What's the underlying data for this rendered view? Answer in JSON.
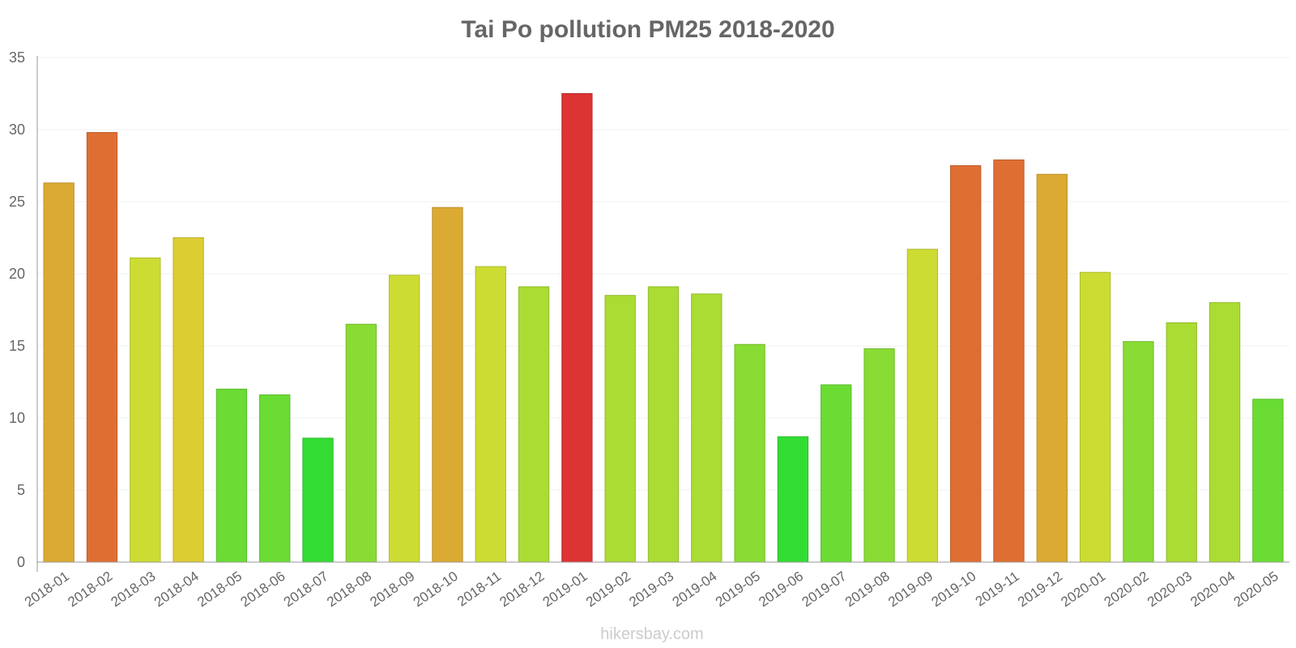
{
  "chart_data": {
    "type": "bar",
    "title": "Tai Po pollution PM25 2018-2020",
    "xlabel": "",
    "ylabel": "",
    "ylim": [
      0,
      35
    ],
    "yticks": [
      "0",
      "5",
      "10",
      "15",
      "20",
      "25",
      "30",
      "35"
    ],
    "grid": true,
    "categories": [
      "2018-01",
      "2018-02",
      "2018-03",
      "2018-04",
      "2018-05",
      "2018-06",
      "2018-07",
      "2018-08",
      "2018-09",
      "2018-10",
      "2018-11",
      "2018-12",
      "2019-01",
      "2019-02",
      "2019-03",
      "2019-04",
      "2019-05",
      "2019-06",
      "2019-07",
      "2019-08",
      "2019-09",
      "2019-10",
      "2019-11",
      "2019-12",
      "2020-01",
      "2020-02",
      "2020-03",
      "2020-04",
      "2020-05"
    ],
    "values": [
      26.3,
      29.8,
      21.1,
      22.5,
      12.0,
      11.6,
      8.6,
      16.5,
      19.9,
      24.6,
      20.5,
      19.1,
      32.5,
      18.5,
      19.1,
      18.6,
      15.1,
      8.7,
      12.3,
      14.8,
      21.7,
      27.5,
      27.9,
      26.9,
      20.1,
      15.3,
      16.6,
      18.0,
      11.3
    ],
    "colors": [
      "#dbaa33",
      "#df6e33",
      "#cddc33",
      "#dccd33",
      "#6adc33",
      "#6adc33",
      "#33dc33",
      "#88dc33",
      "#cddc33",
      "#dbaa33",
      "#cddc33",
      "#abdc33",
      "#dc3333",
      "#abdc33",
      "#abdc33",
      "#abdc33",
      "#88dc33",
      "#33dc33",
      "#6adc33",
      "#88dc33",
      "#cddc33",
      "#df6e33",
      "#df6e33",
      "#dbaa33",
      "#cddc33",
      "#88dc33",
      "#abdc33",
      "#abdc33",
      "#6adc33"
    ]
  },
  "watermark": "hikersbay.com"
}
